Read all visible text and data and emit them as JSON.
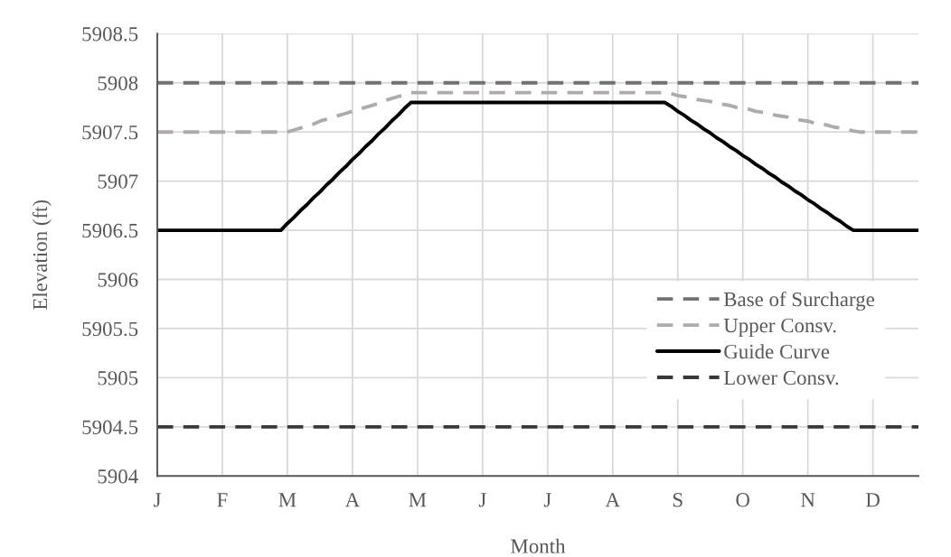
{
  "chart_data": {
    "type": "line",
    "xlabel": "Month",
    "ylabel": "Elevation (ft)",
    "categories": [
      "J",
      null,
      null,
      null,
      null,
      null,
      null,
      null,
      null,
      null,
      "F",
      null,
      null,
      null,
      null,
      null,
      null,
      null,
      null,
      null,
      "M",
      null,
      null,
      null,
      null,
      null,
      null,
      null,
      null,
      null,
      "A",
      null,
      null,
      null,
      null,
      null,
      null,
      null,
      null,
      null,
      "M",
      null,
      null,
      null,
      null,
      null,
      null,
      null,
      null,
      null,
      "J",
      null,
      null,
      null,
      null,
      null,
      null,
      null,
      null,
      null,
      "J",
      null,
      null,
      null,
      null,
      null,
      null,
      null,
      null,
      null,
      "A",
      null,
      null,
      null,
      null,
      null,
      null,
      null,
      null,
      null,
      "S",
      null,
      null,
      null,
      null,
      null,
      null,
      null,
      null,
      null,
      "O",
      null,
      null,
      null,
      null,
      null,
      null,
      null,
      null,
      null,
      "N",
      null,
      null,
      null,
      null,
      null,
      null,
      null,
      null,
      null,
      "D",
      null,
      null,
      null,
      null,
      null,
      null,
      null
    ],
    "ylim": [
      5904,
      5908.5
    ],
    "yticks": [
      5904,
      5904.5,
      5905,
      5905.5,
      5906,
      5906.5,
      5907,
      5907.5,
      5908,
      5908.5
    ],
    "grid": true,
    "legend": "bottom right",
    "series": [
      {
        "name": "Base of Surcharge",
        "color": "#767171",
        "line_style": "dashed",
        "values": [
          5908,
          5908,
          5908,
          5908,
          5908,
          5908,
          5908,
          5908,
          5908,
          5908,
          5908,
          5908,
          5908,
          5908,
          5908,
          5908,
          5908,
          5908,
          5908,
          5908,
          5908,
          5908,
          5908,
          5908,
          5908,
          5908,
          5908,
          5908,
          5908,
          5908,
          5908,
          5908,
          5908,
          5908,
          5908,
          5908,
          5908,
          5908,
          5908,
          5908,
          5908,
          5908,
          5908,
          5908,
          5908,
          5908,
          5908,
          5908,
          5908,
          5908,
          5908,
          5908,
          5908,
          5908,
          5908,
          5908,
          5908,
          5908,
          5908,
          5908,
          5908,
          5908,
          5908,
          5908,
          5908,
          5908,
          5908,
          5908,
          5908,
          5908,
          5908,
          5908,
          5908,
          5908,
          5908,
          5908,
          5908,
          5908,
          5908,
          5908,
          5908,
          5908,
          5908,
          5908,
          5908,
          5908,
          5908,
          5908,
          5908,
          5908,
          5908,
          5908,
          5908,
          5908,
          5908,
          5908,
          5908,
          5908,
          5908,
          5908,
          5908,
          5908,
          5908,
          5908,
          5908,
          5908,
          5908,
          5908,
          5908,
          5908,
          5908,
          5908,
          5908,
          5908,
          5908,
          5908,
          5908,
          5908
        ]
      },
      {
        "name": "Upper Consv.",
        "color": "#afabab",
        "line_style": "dashed",
        "values": [
          5907.5,
          5907.5,
          5907.5,
          5907.5,
          5907.5,
          5907.5,
          5907.5,
          5907.5,
          5907.5,
          5907.5,
          5907.5,
          5907.5,
          5907.5,
          5907.5,
          5907.5,
          5907.5,
          5907.5,
          5907.5,
          5907.5,
          5907.5,
          5907.5,
          5907.52,
          5907.54,
          5907.56,
          5907.58,
          5907.61,
          5907.63,
          5907.65,
          5907.67,
          5907.69,
          5907.71,
          5907.73,
          5907.75,
          5907.77,
          5907.79,
          5907.82,
          5907.84,
          5907.86,
          5907.88,
          5907.9,
          5907.9,
          5907.9,
          5907.9,
          5907.9,
          5907.9,
          5907.9,
          5907.9,
          5907.9,
          5907.9,
          5907.9,
          5907.9,
          5907.9,
          5907.9,
          5907.9,
          5907.9,
          5907.9,
          5907.9,
          5907.9,
          5907.9,
          5907.9,
          5907.9,
          5907.9,
          5907.9,
          5907.9,
          5907.9,
          5907.9,
          5907.9,
          5907.9,
          5907.9,
          5907.9,
          5907.9,
          5907.9,
          5907.9,
          5907.9,
          5907.9,
          5907.9,
          5907.9,
          5907.9,
          5907.9,
          5907.89,
          5907.87,
          5907.86,
          5907.85,
          5907.83,
          5907.82,
          5907.81,
          5907.79,
          5907.78,
          5907.77,
          5907.75,
          5907.74,
          5907.73,
          5907.71,
          5907.7,
          5907.69,
          5907.67,
          5907.66,
          5907.65,
          5907.63,
          5907.62,
          5907.61,
          5907.59,
          5907.58,
          5907.57,
          5907.55,
          5907.54,
          5907.53,
          5907.51,
          5907.5,
          5907.5,
          5907.5,
          5907.5,
          5907.5,
          5907.5,
          5907.5,
          5907.5,
          5907.5,
          5907.5
        ]
      },
      {
        "name": "Guide Curve",
        "color": "#000000",
        "line_style": "solid",
        "values": [
          5906.5,
          5906.5,
          5906.5,
          5906.5,
          5906.5,
          5906.5,
          5906.5,
          5906.5,
          5906.5,
          5906.5,
          5906.5,
          5906.5,
          5906.5,
          5906.5,
          5906.5,
          5906.5,
          5906.5,
          5906.5,
          5906.5,
          5906.5,
          5906.57,
          5906.63,
          5906.7,
          5906.76,
          5906.83,
          5906.89,
          5906.96,
          5907.02,
          5907.09,
          5907.15,
          5907.22,
          5907.28,
          5907.35,
          5907.41,
          5907.48,
          5907.54,
          5907.61,
          5907.67,
          5907.74,
          5907.8,
          5907.8,
          5907.8,
          5907.8,
          5907.8,
          5907.8,
          5907.8,
          5907.8,
          5907.8,
          5907.8,
          5907.8,
          5907.8,
          5907.8,
          5907.8,
          5907.8,
          5907.8,
          5907.8,
          5907.8,
          5907.8,
          5907.8,
          5907.8,
          5907.8,
          5907.8,
          5907.8,
          5907.8,
          5907.8,
          5907.8,
          5907.8,
          5907.8,
          5907.8,
          5907.8,
          5907.8,
          5907.8,
          5907.8,
          5907.8,
          5907.8,
          5907.8,
          5907.8,
          5907.8,
          5907.8,
          5907.76,
          5907.71,
          5907.67,
          5907.62,
          5907.58,
          5907.53,
          5907.49,
          5907.44,
          5907.4,
          5907.35,
          5907.31,
          5907.26,
          5907.22,
          5907.17,
          5907.13,
          5907.08,
          5907.04,
          5906.99,
          5906.95,
          5906.9,
          5906.86,
          5906.81,
          5906.77,
          5906.72,
          5906.68,
          5906.63,
          5906.59,
          5906.54,
          5906.5,
          5906.5,
          5906.5,
          5906.5,
          5906.5,
          5906.5,
          5906.5,
          5906.5,
          5906.5,
          5906.5,
          5906.5
        ]
      },
      {
        "name": "Lower Consv.",
        "color": "#3b3838",
        "line_style": "dashed",
        "values": [
          5904.5,
          5904.5,
          5904.5,
          5904.5,
          5904.5,
          5904.5,
          5904.5,
          5904.5,
          5904.5,
          5904.5,
          5904.5,
          5904.5,
          5904.5,
          5904.5,
          5904.5,
          5904.5,
          5904.5,
          5904.5,
          5904.5,
          5904.5,
          5904.5,
          5904.5,
          5904.5,
          5904.5,
          5904.5,
          5904.5,
          5904.5,
          5904.5,
          5904.5,
          5904.5,
          5904.5,
          5904.5,
          5904.5,
          5904.5,
          5904.5,
          5904.5,
          5904.5,
          5904.5,
          5904.5,
          5904.5,
          5904.5,
          5904.5,
          5904.5,
          5904.5,
          5904.5,
          5904.5,
          5904.5,
          5904.5,
          5904.5,
          5904.5,
          5904.5,
          5904.5,
          5904.5,
          5904.5,
          5904.5,
          5904.5,
          5904.5,
          5904.5,
          5904.5,
          5904.5,
          5904.5,
          5904.5,
          5904.5,
          5904.5,
          5904.5,
          5904.5,
          5904.5,
          5904.5,
          5904.5,
          5904.5,
          5904.5,
          5904.5,
          5904.5,
          5904.5,
          5904.5,
          5904.5,
          5904.5,
          5904.5,
          5904.5,
          5904.5,
          5904.5,
          5904.5,
          5904.5,
          5904.5,
          5904.5,
          5904.5,
          5904.5,
          5904.5,
          5904.5,
          5904.5,
          5904.5,
          5904.5,
          5904.5,
          5904.5,
          5904.5,
          5904.5,
          5904.5,
          5904.5,
          5904.5,
          5904.5,
          5904.5,
          5904.5,
          5904.5,
          5904.5,
          5904.5,
          5904.5,
          5904.5,
          5904.5,
          5904.5,
          5904.5,
          5904.5,
          5904.5,
          5904.5,
          5904.5,
          5904.5,
          5904.5,
          5904.5,
          5904.5
        ]
      }
    ]
  }
}
